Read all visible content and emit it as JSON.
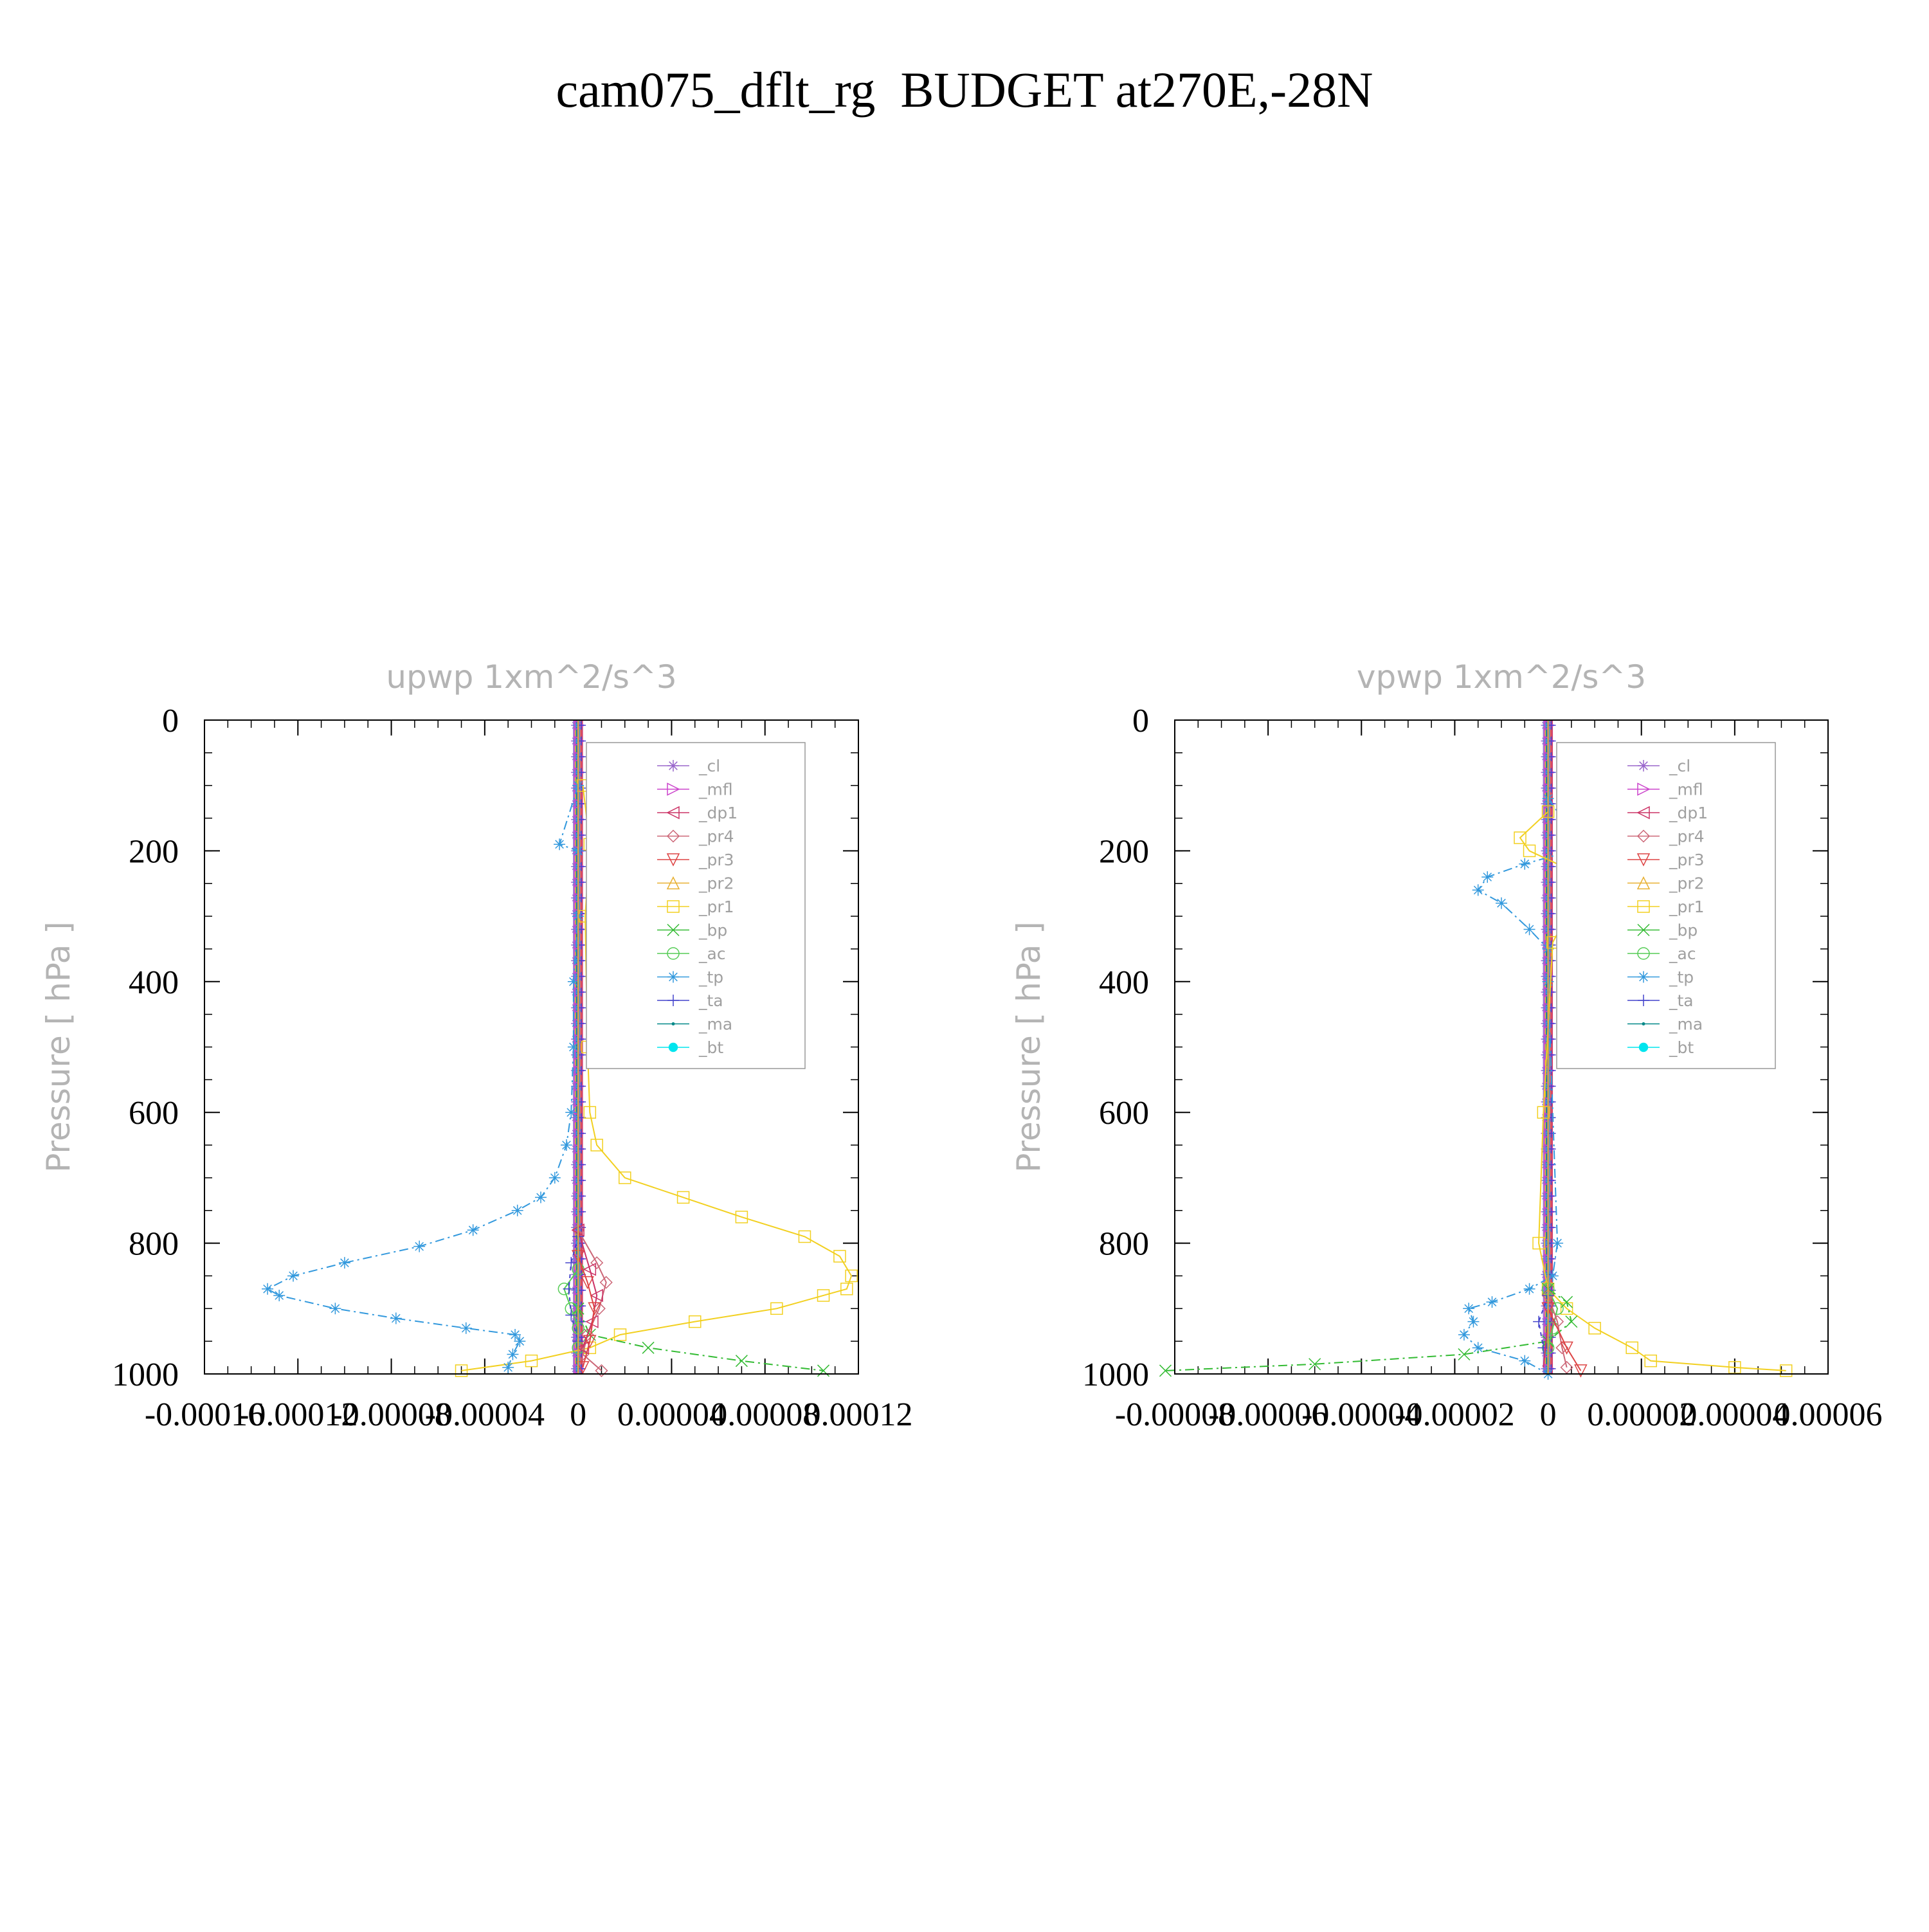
{
  "title": "cam075_dflt_rg  BUDGET at270E,-28N",
  "legend_colors": [
    "#9966cc",
    "#cc44cc",
    "#cc3366",
    "#cc6677",
    "#dd4444",
    "#e8b030",
    "#f2d020",
    "#33bb33",
    "#55cc55",
    "#3399dd",
    "#4444cc",
    "#008888",
    "#00e5ee"
  ],
  "chart_data": [
    {
      "type": "line",
      "title": "upwp   1xm^2/s^3",
      "ylabel": "Pressure [ hPa ]",
      "ylim": [
        1000,
        0
      ],
      "xlim": [
        -0.00016,
        0.00012
      ],
      "yticks": [
        0,
        200,
        400,
        600,
        800,
        1000
      ],
      "xticks": [
        -0.00016,
        -0.00012,
        -8e-05,
        -4e-05,
        0,
        4e-05,
        8e-05,
        0.00012
      ],
      "xticklabels": [
        "-0.00016",
        "-0.00012",
        "-0.00008",
        "-0.00004",
        "0",
        "0.00004",
        "0.00008",
        "0.00012"
      ],
      "legend": [
        "_cl",
        "_mfl",
        "_dp1",
        "_pr4",
        "_pr3",
        "_pr2",
        "_pr1",
        "_bp",
        "_ac",
        "_tp",
        "_ta",
        "_ma",
        "_bt"
      ],
      "series": [
        {
          "name": "_pr1",
          "p": [
            100,
            190,
            300,
            500,
            600,
            650,
            700,
            730,
            760,
            790,
            820,
            850,
            870,
            880,
            900,
            920,
            940,
            960,
            980,
            995
          ],
          "x": [
            2e-06,
            5e-06,
            3e-06,
            4e-06,
            5e-06,
            8e-06,
            2e-05,
            4.5e-05,
            7e-05,
            9.7e-05,
            0.000112,
            0.000117,
            0.000115,
            0.000105,
            8.5e-05,
            5e-05,
            1.8e-05,
            5e-06,
            -2e-05,
            -5e-05
          ]
        },
        {
          "name": "_tp",
          "p": [
            100,
            190,
            200,
            300,
            400,
            500,
            600,
            650,
            700,
            730,
            750,
            780,
            805,
            830,
            850,
            870,
            880,
            900,
            915,
            930,
            940,
            950,
            970,
            990
          ],
          "x": [
            0,
            -8e-06,
            0,
            0,
            -2e-06,
            -2e-06,
            -3e-06,
            -5e-06,
            -1e-05,
            -1.6e-05,
            -2.6e-05,
            -4.5e-05,
            -6.8e-05,
            -0.0001,
            -0.000122,
            -0.000133,
            -0.000128,
            -0.000104,
            -7.8e-05,
            -4.8e-05,
            -2.7e-05,
            -2.5e-05,
            -2.8e-05,
            -3e-05
          ]
        },
        {
          "name": "_bp",
          "p": [
            900,
            940,
            960,
            980,
            995
          ],
          "x": [
            0,
            5e-06,
            3e-05,
            7e-05,
            0.000105
          ]
        },
        {
          "name": "_ac",
          "p": [
            840,
            870,
            900,
            930,
            960
          ],
          "x": [
            0,
            -6e-06,
            -3e-06,
            0,
            0
          ]
        },
        {
          "name": "_pr4",
          "p": [
            780,
            830,
            860,
            900,
            940,
            970,
            995
          ],
          "x": [
            0,
            8e-06,
            1.2e-05,
            9e-06,
            4e-06,
            2e-06,
            1e-05
          ]
        },
        {
          "name": "_dp1",
          "p": [
            780,
            840,
            880,
            920,
            960
          ],
          "x": [
            0,
            5e-06,
            8e-06,
            6e-06,
            2e-06
          ]
        },
        {
          "name": "_pr3",
          "p": [
            820,
            860,
            900,
            950,
            990
          ],
          "x": [
            0,
            4e-06,
            7e-06,
            5e-06,
            2e-06
          ]
        },
        {
          "name": "_ta",
          "p": [
            790,
            830,
            870,
            910,
            950
          ],
          "x": [
            0,
            -3e-06,
            -4e-06,
            -3e-06,
            0
          ]
        },
        {
          "name": "_ma",
          "p": [
            0,
            1000
          ],
          "x": [
            0,
            0
          ]
        },
        {
          "name": "_mfl",
          "p": [
            0,
            1000
          ],
          "x": [
            0,
            0
          ]
        },
        {
          "name": "_cl",
          "p": [
            0,
            1000
          ],
          "x": [
            0,
            0
          ]
        },
        {
          "name": "_pr2",
          "p": [
            0,
            1000
          ],
          "x": [
            0,
            0
          ]
        }
      ]
    },
    {
      "type": "line",
      "title": "vpwp   1xm^2/s^3",
      "ylabel": "Pressure [ hPa ]",
      "ylim": [
        1000,
        0
      ],
      "xlim": [
        -8e-05,
        6e-05
      ],
      "yticks": [
        0,
        200,
        400,
        600,
        800,
        1000
      ],
      "xticks": [
        -8e-05,
        -6e-05,
        -4e-05,
        -2e-05,
        0,
        2e-05,
        4e-05,
        6e-05
      ],
      "xticklabels": [
        "-0.00008",
        "-0.00006",
        "-0.00004",
        "-0.00002",
        "0",
        "0.00002",
        "0.00004",
        "0.00006"
      ],
      "legend": [
        "_cl",
        "_mfl",
        "_dp1",
        "_pr4",
        "_pr3",
        "_pr2",
        "_pr1",
        "_bp",
        "_ac",
        "_tp",
        "_ta",
        "_ma",
        "_bt"
      ],
      "series": [
        {
          "name": "_tp",
          "p": [
            120,
            150,
            170,
            190,
            200,
            220,
            240,
            260,
            280,
            320,
            350,
            400,
            800,
            850,
            870,
            890,
            900,
            920,
            940,
            960,
            980,
            1000
          ],
          "x": [
            0,
            3e-06,
            6e-06,
            7e-06,
            5e-06,
            -5e-06,
            -1.3e-05,
            -1.5e-05,
            -1e-05,
            -4e-06,
            0,
            0,
            2e-06,
            1e-06,
            -4e-06,
            -1.2e-05,
            -1.7e-05,
            -1.6e-05,
            -1.8e-05,
            -1.5e-05,
            -5e-06,
            0
          ]
        },
        {
          "name": "_pr1",
          "p": [
            140,
            180,
            200,
            230,
            250,
            270,
            300,
            340,
            600,
            800,
            870,
            900,
            930,
            960,
            980,
            990,
            995
          ],
          "x": [
            0,
            -6e-06,
            -4e-06,
            5e-06,
            9e-06,
            8e-06,
            4e-06,
            1e-06,
            -1e-06,
            -2e-06,
            0,
            4e-06,
            1e-05,
            1.8e-05,
            2.2e-05,
            4e-05,
            5.1e-05
          ]
        },
        {
          "name": "_bp",
          "p": [
            870,
            890,
            920,
            950,
            970,
            985,
            995
          ],
          "x": [
            0,
            4e-06,
            5e-06,
            0,
            -1.8e-05,
            -5e-05,
            -8.2e-05
          ]
        },
        {
          "name": "_ac",
          "p": [
            870,
            900,
            930,
            960
          ],
          "x": [
            0,
            2e-06,
            1e-06,
            0
          ]
        },
        {
          "name": "_pr4",
          "p": [
            880,
            920,
            960,
            990
          ],
          "x": [
            0,
            2e-06,
            3e-06,
            4e-06
          ]
        },
        {
          "name": "_pr3",
          "p": [
            900,
            960,
            995
          ],
          "x": [
            0,
            4e-06,
            7e-06
          ]
        },
        {
          "name": "_ta",
          "p": [
            880,
            920,
            960
          ],
          "x": [
            0,
            -2e-06,
            -1e-06
          ]
        },
        {
          "name": "_dp1",
          "p": [
            920,
            990
          ],
          "x": [
            0,
            -1e-06
          ]
        },
        {
          "name": "_ma",
          "p": [
            0,
            1000
          ],
          "x": [
            0,
            0
          ]
        },
        {
          "name": "_mfl",
          "p": [
            0,
            1000
          ],
          "x": [
            0,
            0
          ]
        },
        {
          "name": "_cl",
          "p": [
            0,
            1000
          ],
          "x": [
            0,
            0
          ]
        },
        {
          "name": "_pr2",
          "p": [
            0,
            1000
          ],
          "x": [
            0,
            0
          ]
        }
      ]
    }
  ]
}
